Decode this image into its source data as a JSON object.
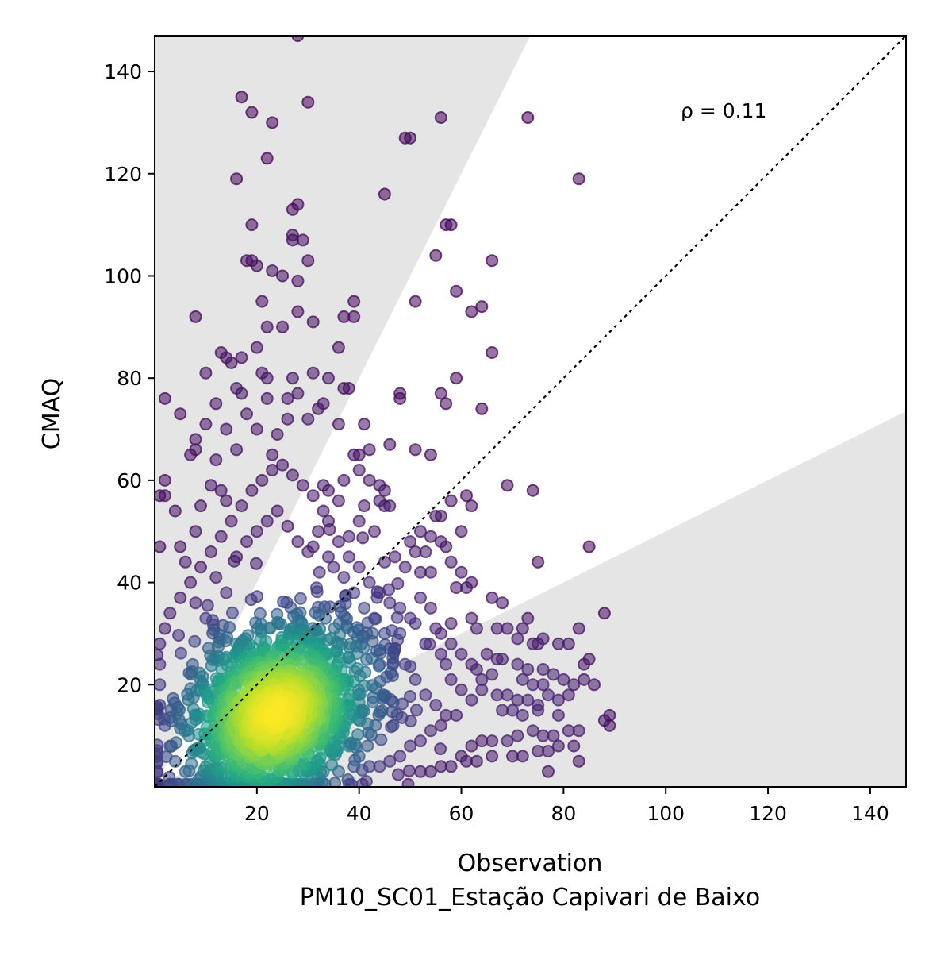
{
  "colors": {
    "background": "#ffffff",
    "shade": "#e5e5e5",
    "axis": "#000000",
    "one_to_one_line": "#000000",
    "colormap": [
      "#440154",
      "#482878",
      "#3e4989",
      "#31688e",
      "#26828e",
      "#1f9e89",
      "#35b779",
      "#6ece58",
      "#b5de2b",
      "#fde725"
    ]
  },
  "chart_data": {
    "type": "scatter",
    "title": "",
    "xlabel": "Observation",
    "xlabel_sub": "PM10_SC01_Estação Capivari de Baixo",
    "ylabel": "CMAQ",
    "xlim": [
      0,
      147
    ],
    "ylim": [
      0,
      147
    ],
    "xticks": [
      20,
      40,
      60,
      80,
      100,
      120,
      140
    ],
    "yticks": [
      20,
      40,
      60,
      80,
      100,
      120,
      140
    ],
    "annotation": "ρ = 0.11",
    "reference_line": "1:1 dotted",
    "shaded_regions": [
      {
        "from_slope": 2,
        "to_slope": "vertical",
        "label": ""
      },
      {
        "from_slope": 0,
        "to_slope": 0.5,
        "label": ""
      }
    ],
    "color_by": "point density (viridis)",
    "grid": false,
    "density_core": {
      "center": [
        24,
        15
      ],
      "spread": [
        10,
        9
      ],
      "count": 1400
    },
    "points": [
      [
        28,
        147
      ],
      [
        17,
        135
      ],
      [
        30,
        134
      ],
      [
        19,
        132
      ],
      [
        23,
        130
      ],
      [
        56,
        131
      ],
      [
        73,
        131
      ],
      [
        49,
        127
      ],
      [
        50,
        127
      ],
      [
        22,
        123
      ],
      [
        83,
        119
      ],
      [
        16,
        119
      ],
      [
        45,
        116
      ],
      [
        27,
        113
      ],
      [
        28,
        114
      ],
      [
        19,
        110
      ],
      [
        57,
        110
      ],
      [
        58,
        110
      ],
      [
        27,
        108
      ],
      [
        27,
        107
      ],
      [
        29,
        107
      ],
      [
        18,
        103
      ],
      [
        19,
        103
      ],
      [
        20,
        102
      ],
      [
        23,
        101
      ],
      [
        30,
        103
      ],
      [
        55,
        104
      ],
      [
        66,
        103
      ],
      [
        25,
        100
      ],
      [
        28,
        99
      ],
      [
        59,
        97
      ],
      [
        62,
        93
      ],
      [
        64,
        94
      ],
      [
        51,
        95
      ],
      [
        21,
        95
      ],
      [
        39,
        95
      ],
      [
        8,
        92
      ],
      [
        28,
        93
      ],
      [
        37,
        92
      ],
      [
        39,
        92
      ],
      [
        25,
        90
      ],
      [
        22,
        90
      ],
      [
        31,
        91
      ],
      [
        36,
        86
      ],
      [
        20,
        86
      ],
      [
        17,
        84
      ],
      [
        13,
        85
      ],
      [
        14,
        84
      ],
      [
        15,
        83
      ],
      [
        66,
        85
      ],
      [
        10,
        81
      ],
      [
        21,
        81
      ],
      [
        22,
        80
      ],
      [
        31,
        81
      ],
      [
        27,
        80
      ],
      [
        34,
        80
      ],
      [
        37,
        78
      ],
      [
        38,
        78
      ],
      [
        16,
        78
      ],
      [
        17,
        77
      ],
      [
        28,
        77
      ],
      [
        12,
        75
      ],
      [
        26,
        76
      ],
      [
        22,
        76
      ],
      [
        33,
        75
      ],
      [
        48,
        77
      ],
      [
        48,
        76
      ],
      [
        59,
        80
      ],
      [
        56,
        77
      ],
      [
        57,
        75
      ],
      [
        64,
        74
      ],
      [
        2,
        76
      ],
      [
        5,
        73
      ],
      [
        32,
        74
      ],
      [
        18,
        73
      ],
      [
        26,
        72
      ],
      [
        30,
        72
      ],
      [
        36,
        71
      ],
      [
        41,
        71
      ],
      [
        10,
        71
      ],
      [
        14,
        70
      ],
      [
        20,
        70
      ],
      [
        24,
        69
      ],
      [
        46,
        67
      ],
      [
        8,
        68
      ],
      [
        8,
        66
      ],
      [
        7,
        65
      ],
      [
        12,
        64
      ],
      [
        16,
        66
      ],
      [
        23,
        65
      ],
      [
        39,
        65
      ],
      [
        40,
        65
      ],
      [
        42,
        66
      ],
      [
        51,
        66
      ],
      [
        54,
        65
      ],
      [
        40,
        62
      ],
      [
        37,
        60
      ],
      [
        2,
        60
      ],
      [
        11,
        59
      ],
      [
        13,
        58
      ],
      [
        33,
        59
      ],
      [
        34,
        58
      ],
      [
        42,
        60
      ],
      [
        44,
        59
      ],
      [
        45,
        58
      ],
      [
        69,
        59
      ],
      [
        74,
        58
      ],
      [
        1,
        57
      ],
      [
        2,
        57
      ],
      [
        14,
        56
      ],
      [
        44,
        56
      ],
      [
        45,
        55
      ],
      [
        46,
        55
      ],
      [
        61,
        57
      ],
      [
        62,
        55
      ],
      [
        58,
        56
      ],
      [
        4,
        54
      ],
      [
        9,
        55
      ],
      [
        55,
        53
      ],
      [
        56,
        53
      ],
      [
        52,
        50
      ],
      [
        60,
        50
      ],
      [
        54,
        49
      ],
      [
        85,
        47
      ],
      [
        5,
        47
      ],
      [
        8,
        50
      ],
      [
        1,
        47
      ],
      [
        50,
        48
      ],
      [
        51,
        46
      ],
      [
        53,
        46
      ],
      [
        56,
        48
      ],
      [
        57,
        47
      ],
      [
        58,
        44
      ],
      [
        75,
        44
      ],
      [
        47,
        45
      ],
      [
        45,
        44
      ],
      [
        49,
        43
      ],
      [
        52,
        42
      ],
      [
        54,
        42
      ],
      [
        60,
        42
      ],
      [
        62,
        40
      ],
      [
        59,
        39
      ],
      [
        61,
        39
      ],
      [
        66,
        37
      ],
      [
        68,
        36
      ],
      [
        62,
        33
      ],
      [
        58,
        32
      ],
      [
        63,
        31
      ],
      [
        67,
        31
      ],
      [
        69,
        31
      ],
      [
        72,
        31
      ],
      [
        76,
        29
      ],
      [
        74,
        28
      ],
      [
        75,
        28
      ],
      [
        79,
        28
      ],
      [
        81,
        28
      ],
      [
        83,
        31
      ],
      [
        84,
        24
      ],
      [
        85,
        25
      ],
      [
        73,
        33
      ],
      [
        88,
        34
      ],
      [
        71,
        29
      ],
      [
        65,
        26
      ],
      [
        67,
        25
      ],
      [
        68,
        25
      ],
      [
        71,
        24
      ],
      [
        73,
        23
      ],
      [
        76,
        23
      ],
      [
        78,
        22
      ],
      [
        80,
        21
      ],
      [
        82,
        20
      ],
      [
        84,
        21
      ],
      [
        86,
        20
      ],
      [
        72,
        21
      ],
      [
        74,
        20
      ],
      [
        76,
        20
      ],
      [
        66,
        22
      ],
      [
        63,
        23
      ],
      [
        64,
        19
      ],
      [
        67,
        18
      ],
      [
        69,
        18
      ],
      [
        71,
        17
      ],
      [
        73,
        17
      ],
      [
        75,
        16
      ],
      [
        77,
        18
      ],
      [
        79,
        17
      ],
      [
        81,
        18
      ],
      [
        68,
        15
      ],
      [
        70,
        15
      ],
      [
        72,
        14
      ],
      [
        75,
        15
      ],
      [
        79,
        14
      ],
      [
        88,
        13
      ],
      [
        89,
        14
      ],
      [
        89,
        12
      ],
      [
        81,
        11
      ],
      [
        83,
        11
      ],
      [
        74,
        11
      ],
      [
        76,
        10
      ],
      [
        78,
        10
      ],
      [
        71,
        10
      ],
      [
        69,
        9
      ],
      [
        66,
        9
      ],
      [
        64,
        9
      ],
      [
        62,
        8
      ],
      [
        70,
        6
      ],
      [
        72,
        6
      ],
      [
        75,
        7
      ],
      [
        77,
        7
      ],
      [
        79,
        8
      ],
      [
        82,
        8
      ],
      [
        60,
        6
      ],
      [
        61,
        5
      ],
      [
        58,
        4
      ],
      [
        56,
        4
      ],
      [
        54,
        3
      ],
      [
        52,
        3
      ],
      [
        77,
        3
      ],
      [
        83,
        5
      ],
      [
        66,
        6
      ],
      [
        63,
        5
      ],
      [
        44,
        24
      ],
      [
        48,
        30
      ],
      [
        51,
        32
      ],
      [
        53,
        28
      ],
      [
        55,
        31
      ],
      [
        56,
        26
      ],
      [
        57,
        24
      ],
      [
        58,
        21
      ],
      [
        60,
        19
      ],
      [
        62,
        17
      ],
      [
        59,
        14
      ],
      [
        56,
        12
      ],
      [
        54,
        11
      ],
      [
        52,
        9
      ],
      [
        50,
        8
      ],
      [
        48,
        6
      ],
      [
        46,
        5
      ],
      [
        44,
        4
      ],
      [
        42,
        4
      ],
      [
        40,
        6
      ],
      [
        38,
        8
      ],
      [
        35,
        43
      ],
      [
        38,
        49
      ],
      [
        40,
        52
      ],
      [
        41,
        55
      ],
      [
        43,
        50
      ],
      [
        36,
        56
      ],
      [
        33,
        54
      ],
      [
        31,
        57
      ],
      [
        29,
        59
      ],
      [
        27,
        61
      ],
      [
        25,
        63
      ],
      [
        23,
        62
      ],
      [
        21,
        60
      ],
      [
        19,
        58
      ],
      [
        17,
        55
      ],
      [
        15,
        52
      ],
      [
        13,
        49
      ],
      [
        11,
        46
      ],
      [
        9,
        43
      ],
      [
        7,
        40
      ],
      [
        5,
        37
      ],
      [
        3,
        34
      ],
      [
        2,
        31
      ],
      [
        1,
        28
      ],
      [
        1,
        24
      ],
      [
        1,
        20
      ],
      [
        1,
        16
      ],
      [
        2,
        12
      ],
      [
        3,
        8
      ],
      [
        4,
        5
      ],
      [
        6,
        3
      ],
      [
        9,
        2
      ],
      [
        12,
        2
      ],
      [
        15,
        2
      ],
      [
        18,
        2
      ],
      [
        21,
        2
      ],
      [
        24,
        2
      ],
      [
        27,
        3
      ],
      [
        30,
        3
      ],
      [
        33,
        3
      ],
      [
        36,
        3
      ],
      [
        39,
        4
      ],
      [
        31,
        47
      ],
      [
        34,
        45
      ],
      [
        37,
        41
      ],
      [
        39,
        38
      ],
      [
        41,
        35
      ],
      [
        43,
        33
      ],
      [
        45,
        30
      ],
      [
        47,
        27
      ],
      [
        49,
        24
      ],
      [
        51,
        21
      ],
      [
        53,
        18
      ],
      [
        55,
        16
      ],
      [
        57,
        14
      ],
      [
        6,
        44
      ],
      [
        8,
        36
      ],
      [
        10,
        33
      ],
      [
        12,
        41
      ],
      [
        14,
        38
      ],
      [
        16,
        45
      ],
      [
        18,
        48
      ],
      [
        20,
        50
      ],
      [
        22,
        52
      ],
      [
        24,
        54
      ],
      [
        26,
        51
      ],
      [
        28,
        48
      ],
      [
        30,
        46
      ],
      [
        32,
        50
      ],
      [
        34,
        52
      ],
      [
        36,
        48
      ],
      [
        38,
        45
      ],
      [
        40,
        43
      ],
      [
        42,
        40
      ],
      [
        44,
        38
      ],
      [
        46,
        36
      ],
      [
        48,
        35
      ],
      [
        50,
        33
      ],
      [
        52,
        37
      ],
      [
        54,
        35
      ],
      [
        56,
        30
      ],
      [
        58,
        28
      ],
      [
        60,
        26
      ],
      [
        62,
        24
      ],
      [
        64,
        21
      ]
    ]
  }
}
